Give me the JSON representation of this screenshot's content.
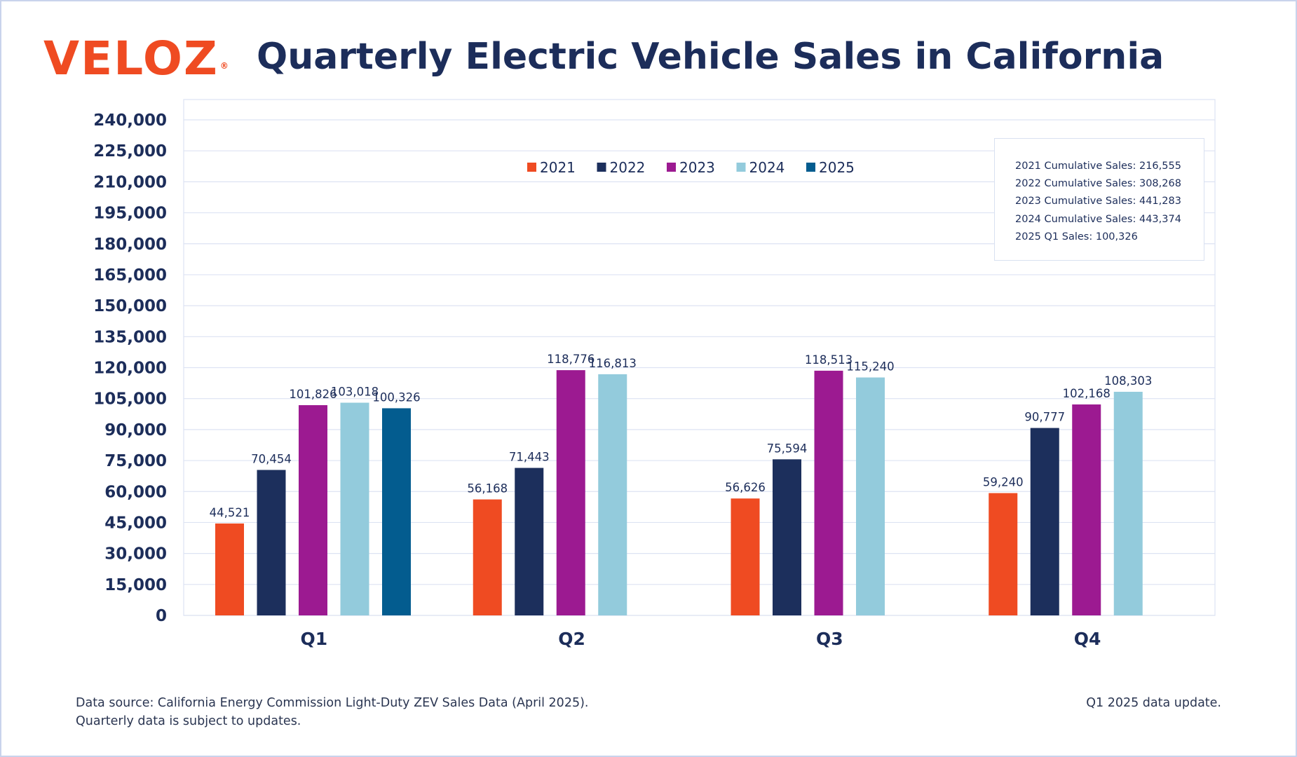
{
  "header": {
    "logo": "VELOZ",
    "logo_mark": "®",
    "title": "Quarterly Electric Vehicle Sales in California"
  },
  "colors": {
    "2021": "#ef4b22",
    "2022": "#1c2f5c",
    "2023": "#9c1a91",
    "2024": "#93cbdc",
    "2025": "#035c8f",
    "text": "#1c2d5a",
    "grid": "#dde3f3",
    "logo": "#ef4b22"
  },
  "chart_data": {
    "type": "bar",
    "title": "Quarterly Electric Vehicle Sales in California",
    "categories": [
      "Q1",
      "Q2",
      "Q3",
      "Q4"
    ],
    "series": [
      {
        "name": "2021",
        "values": [
          44521,
          56168,
          56626,
          59240
        ],
        "labels": [
          "44,521",
          "56,168",
          "56,626",
          "59,240"
        ]
      },
      {
        "name": "2022",
        "values": [
          70454,
          71443,
          75594,
          90777
        ],
        "labels": [
          "70,454",
          "71,443",
          "75,594",
          "90,777"
        ]
      },
      {
        "name": "2023",
        "values": [
          101826,
          118776,
          118513,
          102168
        ],
        "labels": [
          "101,826",
          "118,776",
          "118,513",
          "102,168"
        ]
      },
      {
        "name": "2024",
        "values": [
          103018,
          116813,
          115240,
          108303
        ],
        "labels": [
          "103,018",
          "116,813",
          "115,240",
          "108,303"
        ]
      },
      {
        "name": "2025",
        "values": [
          100326,
          null,
          null,
          null
        ],
        "labels": [
          "100,326",
          null,
          null,
          null
        ]
      }
    ],
    "ylim": [
      0,
      240000
    ],
    "yticks": [
      "0",
      "15,000",
      "30,000",
      "45,000",
      "60,000",
      "75,000",
      "90,000",
      "105,000",
      "120,000",
      "135,000",
      "150,000",
      "165,000",
      "180,000",
      "195,000",
      "210,000",
      "225,000",
      "240,000"
    ],
    "xlabel": "",
    "ylabel": "",
    "grid": true,
    "legend_position": "top-center"
  },
  "summary_box": {
    "lines": [
      "2021 Cumulative Sales: 216,555",
      "2022 Cumulative Sales: 308,268",
      "2023 Cumulative Sales: 441,283",
      "2024 Cumulative Sales: 443,374",
      "2025 Q1 Sales: 100,326"
    ]
  },
  "footer": {
    "source_line1": "Data source: California Energy Commission Light-Duty ZEV Sales Data (April 2025).",
    "source_line2": "Quarterly data is subject to updates.",
    "update_note": "Q1 2025 data update."
  }
}
